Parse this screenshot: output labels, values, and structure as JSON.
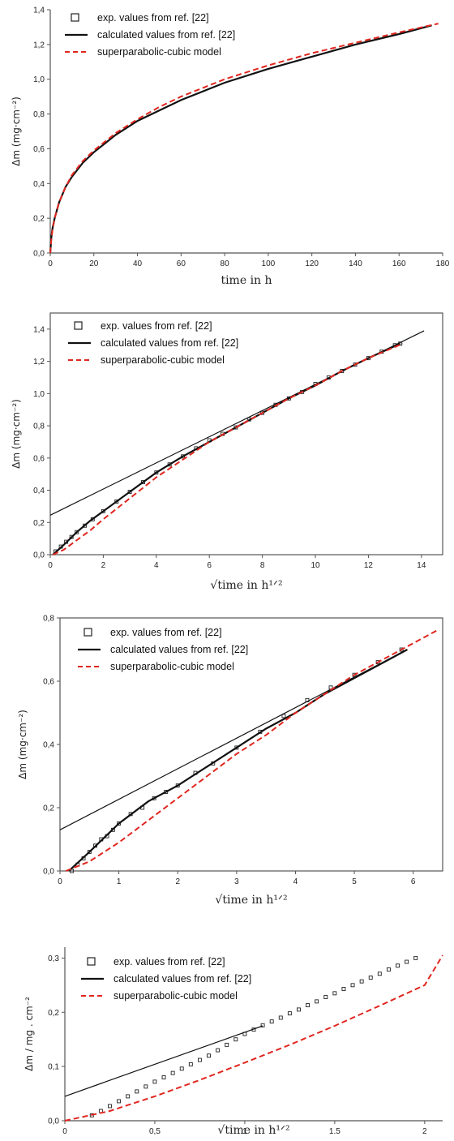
{
  "colors": {
    "exp": "#222222",
    "calc": "#111111",
    "model": "#e0261f",
    "frame": "#555555"
  },
  "chart_data": [
    {
      "type": "line",
      "xlabel": "time in h",
      "ylabel": "Δm (mg·cm⁻²)",
      "xlim": [
        0,
        180
      ],
      "ylim": [
        0,
        1.4
      ],
      "xticks": [
        0,
        20,
        40,
        60,
        80,
        100,
        120,
        140,
        160,
        180
      ],
      "xtick_labels": [
        "0",
        "20",
        "40",
        "60",
        "80",
        "100",
        "120",
        "140",
        "160",
        "180"
      ],
      "yticks": [
        0,
        0.2,
        0.4,
        0.6,
        0.8,
        1.0,
        1.2,
        1.4
      ],
      "ytick_labels": [
        "0,0",
        "0,2",
        "0,4",
        "0,6",
        "0,8",
        "1,0",
        "1,2",
        "1,4"
      ],
      "legend": [
        "exp. values from ref. [22]",
        "calculated values from ref. [22]",
        "superparabolic-cubic model"
      ],
      "series": [
        {
          "name": "calculated values from ref. [22]",
          "style": "solid",
          "x": [
            0,
            0.5,
            1,
            2,
            4,
            7,
            10,
            15,
            20,
            30,
            40,
            50,
            60,
            80,
            100,
            120,
            140,
            160,
            175
          ],
          "y": [
            0,
            0.09,
            0.14,
            0.2,
            0.29,
            0.38,
            0.44,
            0.52,
            0.58,
            0.68,
            0.76,
            0.82,
            0.88,
            0.98,
            1.06,
            1.13,
            1.2,
            1.26,
            1.31
          ]
        },
        {
          "name": "superparabolic-cubic model",
          "style": "dashed",
          "x": [
            0,
            0.5,
            1,
            2,
            4,
            7,
            10,
            15,
            20,
            30,
            40,
            50,
            60,
            80,
            100,
            120,
            140,
            160,
            178
          ],
          "y": [
            0,
            0.08,
            0.13,
            0.2,
            0.29,
            0.38,
            0.45,
            0.53,
            0.59,
            0.69,
            0.77,
            0.84,
            0.9,
            1.0,
            1.08,
            1.15,
            1.21,
            1.27,
            1.32
          ]
        }
      ]
    },
    {
      "type": "line",
      "xlabel": "√time in h¹ᐟ²",
      "ylabel": "Δm (mg·cm⁻²)",
      "xlim": [
        0,
        14.8
      ],
      "ylim": [
        0,
        1.5
      ],
      "xticks": [
        0,
        2,
        4,
        6,
        8,
        10,
        12,
        14
      ],
      "xtick_labels": [
        "0",
        "2",
        "4",
        "6",
        "8",
        "10",
        "12",
        "14"
      ],
      "yticks": [
        0,
        0.2,
        0.4,
        0.6,
        0.8,
        1.0,
        1.2,
        1.4
      ],
      "ytick_labels": [
        "0,0",
        "0,2",
        "0,4",
        "0,6",
        "0,8",
        "1,0",
        "1,2",
        "1,4"
      ],
      "legend": [
        "exp. values from ref. [22]",
        "calculated values from ref. [22]",
        "superparabolic-cubic model"
      ],
      "series": [
        {
          "name": "exp. values from ref. [22]",
          "style": "markers",
          "x": [
            0.2,
            0.4,
            0.6,
            0.8,
            1.0,
            1.3,
            1.6,
            2.0,
            2.5,
            3.0,
            3.5,
            4.0,
            4.5,
            5.0,
            5.5,
            6.0,
            6.5,
            7.0,
            7.5,
            8.0,
            8.5,
            9.0,
            9.5,
            10.0,
            10.5,
            11.0,
            11.5,
            12.0,
            12.5,
            13.0,
            13.2
          ],
          "y": [
            0.02,
            0.05,
            0.08,
            0.11,
            0.14,
            0.18,
            0.22,
            0.27,
            0.33,
            0.39,
            0.45,
            0.51,
            0.56,
            0.61,
            0.66,
            0.71,
            0.75,
            0.79,
            0.84,
            0.88,
            0.93,
            0.97,
            1.01,
            1.06,
            1.1,
            1.14,
            1.18,
            1.22,
            1.26,
            1.3,
            1.31
          ]
        },
        {
          "name": "calculated values from ref. [22]",
          "style": "solid",
          "x": [
            0.1,
            0.5,
            1.0,
            1.5,
            2.0,
            3.0,
            4.0,
            5.0,
            6.0,
            7.0,
            8.0,
            9.0,
            10.0,
            11.0,
            12.0,
            13.2
          ],
          "y": [
            0.0,
            0.06,
            0.14,
            0.21,
            0.27,
            0.39,
            0.51,
            0.61,
            0.7,
            0.79,
            0.88,
            0.97,
            1.05,
            1.14,
            1.22,
            1.31
          ]
        },
        {
          "name": "linear fit",
          "style": "solid",
          "x": [
            0,
            14.1
          ],
          "y": [
            0.245,
            1.39
          ]
        },
        {
          "name": "superparabolic-cubic model",
          "style": "dashed",
          "x": [
            0.1,
            0.5,
            1.0,
            1.5,
            2.0,
            3.0,
            4.0,
            5.0,
            6.0,
            7.0,
            8.0,
            9.0,
            10.0,
            11.0,
            12.0,
            13.3
          ],
          "y": [
            0.0,
            0.03,
            0.09,
            0.15,
            0.22,
            0.35,
            0.48,
            0.59,
            0.7,
            0.79,
            0.88,
            0.97,
            1.05,
            1.14,
            1.22,
            1.31
          ]
        }
      ]
    },
    {
      "type": "line",
      "xlabel": "√time in h¹ᐟ²",
      "ylabel": "Δm (mg·cm⁻²)",
      "xlim": [
        0,
        6.5
      ],
      "ylim": [
        0,
        0.8
      ],
      "xticks": [
        0,
        1,
        2,
        3,
        4,
        5,
        6
      ],
      "xtick_labels": [
        "0",
        "1",
        "2",
        "3",
        "4",
        "5",
        "6"
      ],
      "yticks": [
        0,
        0.2,
        0.4,
        0.6,
        0.8
      ],
      "ytick_labels": [
        "0,0",
        "0,2",
        "0,4",
        "0,6",
        "0,8"
      ],
      "legend": [
        "exp. values from ref. [22]",
        "calculated values from ref. [22]",
        "superparabolic-cubic model"
      ],
      "series": [
        {
          "name": "exp. values from ref. [22]",
          "style": "markers",
          "x": [
            0.2,
            0.3,
            0.4,
            0.5,
            0.6,
            0.7,
            0.8,
            0.9,
            1.0,
            1.2,
            1.4,
            1.6,
            1.8,
            2.0,
            2.3,
            2.6,
            3.0,
            3.4,
            3.8,
            4.2,
            4.6,
            5.0,
            5.4,
            5.8
          ],
          "y": [
            0.0,
            0.02,
            0.04,
            0.06,
            0.08,
            0.1,
            0.11,
            0.13,
            0.15,
            0.18,
            0.2,
            0.23,
            0.25,
            0.27,
            0.31,
            0.34,
            0.39,
            0.44,
            0.49,
            0.54,
            0.58,
            0.62,
            0.66,
            0.7
          ]
        },
        {
          "name": "calculated values from ref. [22]",
          "style": "solid",
          "x": [
            0.15,
            0.5,
            1.0,
            1.5,
            2.0,
            2.5,
            3.0,
            3.5,
            4.0,
            4.5,
            5.0,
            5.5,
            5.9
          ],
          "y": [
            0.0,
            0.06,
            0.15,
            0.22,
            0.27,
            0.33,
            0.39,
            0.45,
            0.5,
            0.56,
            0.61,
            0.66,
            0.7
          ]
        },
        {
          "name": "linear fit",
          "style": "solid",
          "x": [
            0,
            5.9
          ],
          "y": [
            0.13,
            0.7
          ]
        },
        {
          "name": "superparabolic-cubic model",
          "style": "dashed",
          "x": [
            0.1,
            0.5,
            1.0,
            1.5,
            2.0,
            2.5,
            3.0,
            3.5,
            4.0,
            4.5,
            5.0,
            5.5,
            6.0,
            6.4
          ],
          "y": [
            0.0,
            0.03,
            0.09,
            0.16,
            0.23,
            0.3,
            0.37,
            0.43,
            0.5,
            0.56,
            0.62,
            0.67,
            0.72,
            0.76
          ]
        }
      ]
    },
    {
      "type": "line",
      "xlabel": "√time in h¹ᐟ²",
      "ylabel": "Δm / mg . cm⁻²",
      "xlim": [
        0,
        2.1
      ],
      "ylim": [
        0,
        0.32
      ],
      "xticks": [
        0,
        0.5,
        1,
        1.5,
        2
      ],
      "xtick_labels": [
        "0",
        "0,5",
        "1",
        "1.5",
        "2"
      ],
      "yticks": [
        0,
        0.1,
        0.2,
        0.3
      ],
      "ytick_labels": [
        "0,0",
        "0,1",
        "0,2",
        "0,3"
      ],
      "legend": [
        "exp. values from ref. [22]",
        "calculated values from ref. [22]",
        "superparabolic-cubic model"
      ],
      "series": [
        {
          "name": "exp. values from ref. [22]",
          "style": "markers",
          "x": [
            0.15,
            0.2,
            0.25,
            0.3,
            0.35,
            0.4,
            0.45,
            0.5,
            0.55,
            0.6,
            0.65,
            0.7,
            0.75,
            0.8,
            0.85,
            0.9,
            0.95,
            1.0,
            1.05,
            1.1,
            1.15,
            1.2,
            1.25,
            1.3,
            1.35,
            1.4,
            1.45,
            1.5,
            1.55,
            1.6,
            1.65,
            1.7,
            1.75,
            1.8,
            1.85,
            1.9,
            1.95
          ],
          "y": [
            0.01,
            0.018,
            0.027,
            0.036,
            0.045,
            0.054,
            0.063,
            0.072,
            0.08,
            0.088,
            0.096,
            0.104,
            0.112,
            0.12,
            0.13,
            0.14,
            0.15,
            0.16,
            0.168,
            0.176,
            0.183,
            0.19,
            0.198,
            0.205,
            0.213,
            0.22,
            0.228,
            0.235,
            0.243,
            0.25,
            0.257,
            0.264,
            0.271,
            0.279,
            0.286,
            0.293,
            0.3
          ]
        },
        {
          "name": "linear fit",
          "style": "solid",
          "x": [
            0,
            1.1
          ],
          "y": [
            0.045,
            0.175
          ]
        },
        {
          "name": "superparabolic-cubic model",
          "style": "dashed",
          "x": [
            0,
            0.25,
            0.5,
            0.75,
            1.0,
            1.25,
            1.5,
            1.75,
            2.0,
            2.1
          ],
          "y": [
            0.0,
            0.018,
            0.045,
            0.075,
            0.107,
            0.14,
            0.175,
            0.212,
            0.25,
            0.305
          ]
        }
      ]
    }
  ]
}
